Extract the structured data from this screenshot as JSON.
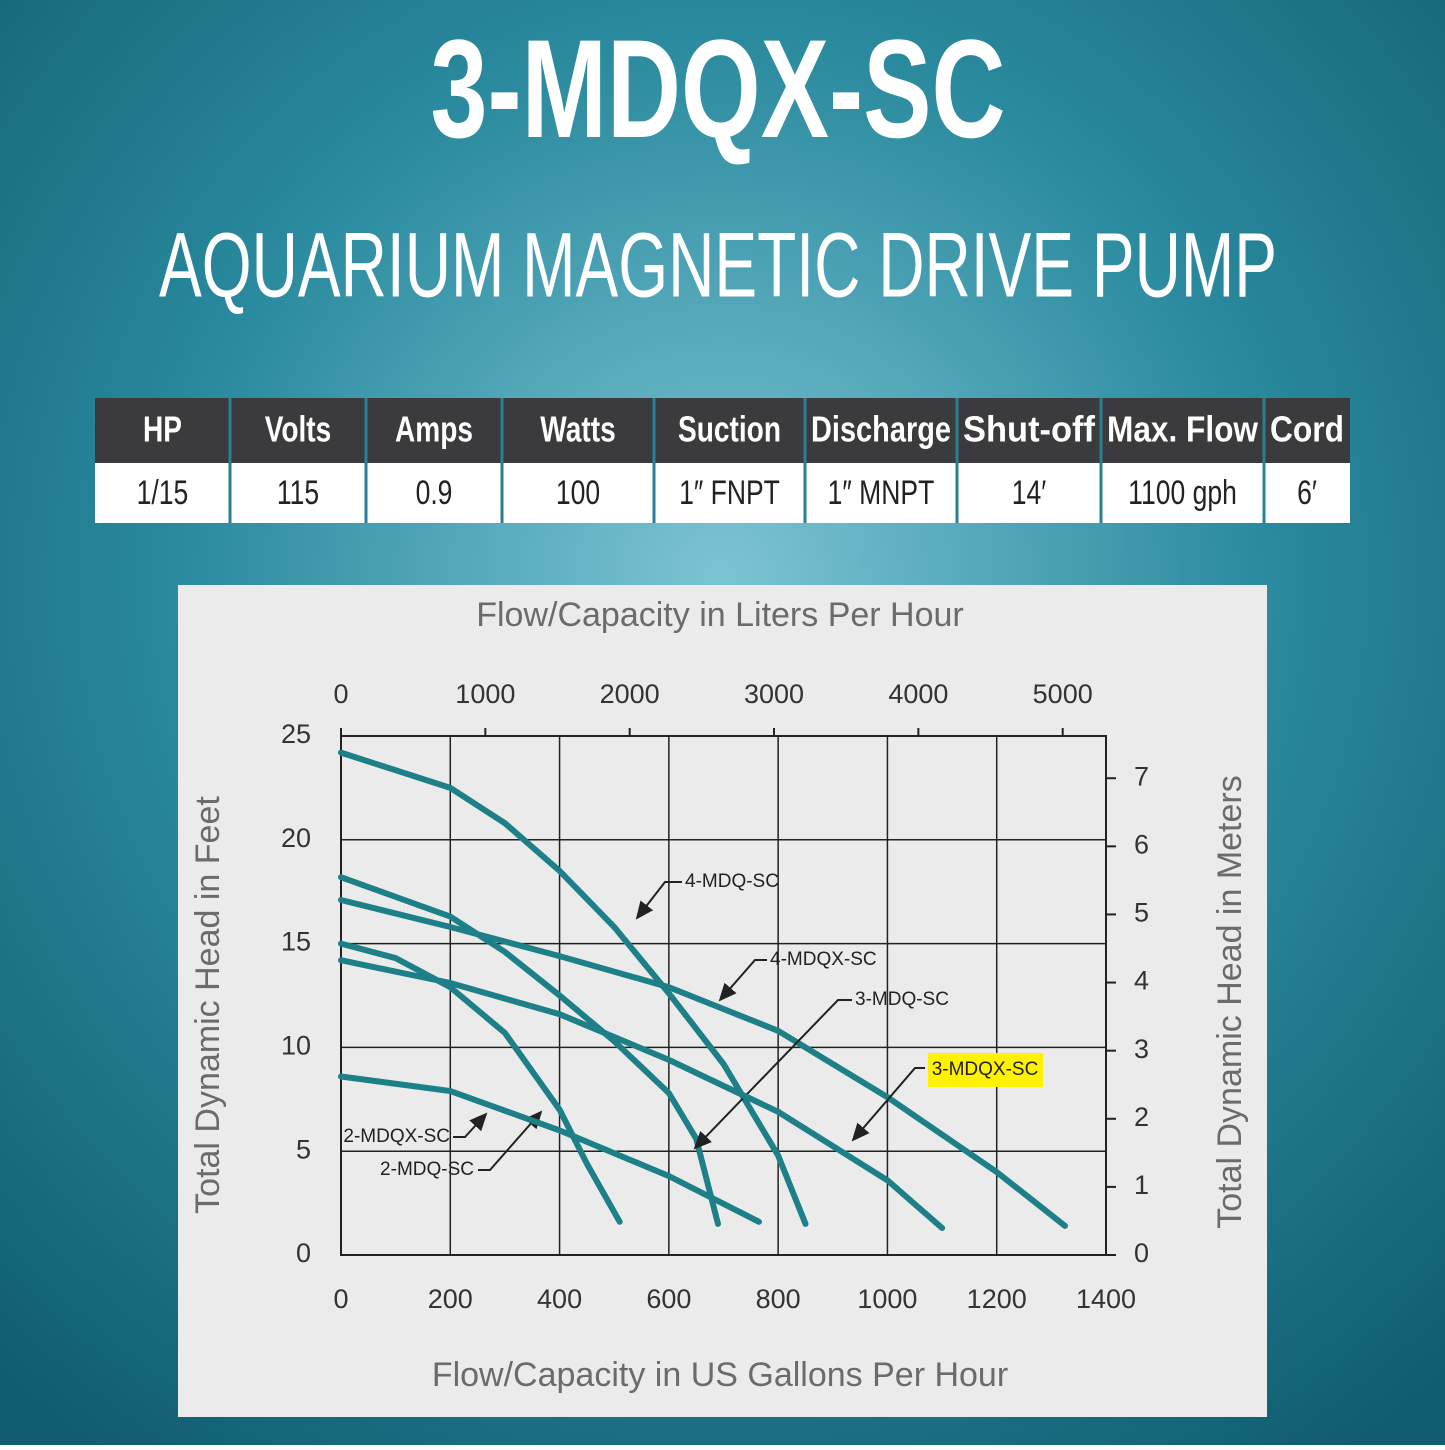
{
  "header": {
    "title": "3-MDQX-SC",
    "subtitle": "AQUARIUM MAGNETIC DRIVE PUMP"
  },
  "table": {
    "headers": [
      "HP",
      "Volts",
      "Amps",
      "Watts",
      "Suction",
      "Discharge",
      "Shut-off",
      "Max. Flow",
      "Cord"
    ],
    "rows": [
      [
        "1/15",
        "115",
        "0.9",
        "100",
        "1″ FNPT",
        "1″ MNPT",
        "14′",
        "1100 gph",
        "6′"
      ]
    ]
  },
  "chart_data": {
    "type": "line",
    "x_label": "Flow/Capacity in US Gallons Per Hour",
    "x2_label": "Flow/Capacity in Liters Per Hour",
    "y_label": "Total Dynamic Head in Feet",
    "y2_label": "Total Dynamic Head in Meters",
    "xlim": [
      0,
      1400
    ],
    "xticks": [
      0,
      200,
      400,
      600,
      800,
      1000,
      1200,
      1400
    ],
    "x2lim": [
      0,
      5300
    ],
    "x2ticks": [
      0,
      1000,
      2000,
      3000,
      4000,
      5000
    ],
    "ylim": [
      0,
      25
    ],
    "yticks": [
      0,
      5,
      10,
      15,
      20,
      25
    ],
    "y2lim": [
      0,
      7.62
    ],
    "y2ticks": [
      0,
      1,
      2,
      3,
      4,
      5,
      6,
      7
    ],
    "grid": true,
    "series": [
      {
        "name": "4-MDQ-SC",
        "color": "#1d7f88",
        "x": [
          0,
          200,
          300,
          400,
          500,
          600,
          700,
          800,
          850
        ],
        "values": [
          24.2,
          22.5,
          20.8,
          18.5,
          15.8,
          12.6,
          9.2,
          4.8,
          1.5
        ]
      },
      {
        "name": "4-MDQX-SC",
        "color": "#1d7f88",
        "x": [
          0,
          200,
          400,
          600,
          800,
          1000,
          1200,
          1325
        ],
        "values": [
          17.1,
          15.8,
          14.4,
          12.9,
          10.8,
          7.6,
          4.0,
          1.4
        ]
      },
      {
        "name": "3-MDQ-SC",
        "color": "#1d7f88",
        "x": [
          0,
          200,
          300,
          400,
          500,
          600,
          650,
          690
        ],
        "values": [
          18.2,
          16.3,
          14.6,
          12.5,
          10.3,
          7.8,
          5.6,
          1.5
        ]
      },
      {
        "name": "3-MDQX-SC",
        "color": "#1d7f88",
        "highlight": "#fff200",
        "x": [
          0,
          200,
          400,
          600,
          800,
          1000,
          1100
        ],
        "values": [
          14.2,
          13.1,
          11.6,
          9.4,
          6.9,
          3.6,
          1.3
        ]
      },
      {
        "name": "2-MDQ-SC",
        "color": "#1d7f88",
        "x": [
          0,
          100,
          200,
          300,
          400,
          450,
          510
        ],
        "values": [
          15,
          14.3,
          12.9,
          10.7,
          7.0,
          4.4,
          1.6
        ]
      },
      {
        "name": "2-MDQX-SC",
        "color": "#1d7f88",
        "x": [
          0,
          200,
          400,
          600,
          765
        ],
        "values": [
          8.6,
          7.9,
          6.0,
          3.8,
          1.6
        ]
      }
    ]
  }
}
